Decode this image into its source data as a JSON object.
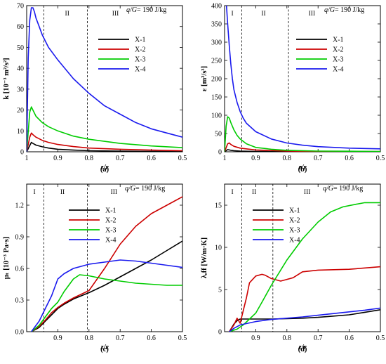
{
  "chart_data": [
    {
      "type": "line",
      "panel_label": "(a)",
      "note": "q/G= 190 J/kg",
      "xlabel": "z/r",
      "ylabel": "k [10⁻³ m²/s²]",
      "xlim": [
        1.0,
        0.5
      ],
      "ylim": [
        0,
        70
      ],
      "xticks": [
        1,
        0.9,
        0.8,
        0.7,
        0.6,
        0.5
      ],
      "yticks": [
        0,
        10,
        20,
        30,
        40,
        50,
        60,
        70
      ],
      "region_labels": [
        "II",
        "III"
      ],
      "region_label_x": [
        0.87,
        0.715
      ],
      "region_boundaries": [
        0.945,
        0.805
      ],
      "legend_position": "right",
      "series": [
        {
          "name": "X-1",
          "color": "#000000",
          "x": [
            1.0,
            0.99,
            0.985,
            0.98,
            0.97,
            0.95,
            0.93,
            0.9,
            0.85,
            0.8,
            0.7,
            0.6,
            0.5
          ],
          "y": [
            0,
            3,
            4.5,
            4,
            3.2,
            2.4,
            1.8,
            1.2,
            0.8,
            0.5,
            0.3,
            0.2,
            0.1
          ]
        },
        {
          "name": "X-2",
          "color": "#cc0000",
          "x": [
            1.0,
            0.99,
            0.985,
            0.98,
            0.97,
            0.95,
            0.93,
            0.9,
            0.85,
            0.8,
            0.7,
            0.6,
            0.5
          ],
          "y": [
            0,
            7,
            9,
            8.2,
            7,
            5.5,
            4.5,
            3.5,
            2.5,
            1.8,
            1.2,
            0.8,
            0.5
          ]
        },
        {
          "name": "X-3",
          "color": "#00cc00",
          "x": [
            1.0,
            0.99,
            0.985,
            0.98,
            0.97,
            0.95,
            0.93,
            0.9,
            0.85,
            0.8,
            0.7,
            0.6,
            0.5
          ],
          "y": [
            0,
            19,
            21.5,
            20,
            17,
            14,
            12,
            10,
            7.5,
            6,
            4,
            2.8,
            2
          ]
        },
        {
          "name": "X-4",
          "color": "#1a1aee",
          "x": [
            1.0,
            0.995,
            0.99,
            0.985,
            0.98,
            0.975,
            0.97,
            0.96,
            0.95,
            0.94,
            0.93,
            0.9,
            0.85,
            0.8,
            0.75,
            0.7,
            0.65,
            0.6,
            0.55,
            0.5
          ],
          "y": [
            0,
            45,
            63,
            69,
            69,
            67,
            64,
            60,
            56,
            53,
            50,
            44,
            35,
            28,
            22,
            18,
            14,
            11,
            9,
            7
          ]
        }
      ]
    },
    {
      "type": "line",
      "panel_label": "(b)",
      "note": "q/G= 190 J/kg",
      "xlabel": "z/r",
      "ylabel": "ε [m²/s³]",
      "xlim": [
        1.0,
        0.5
      ],
      "ylim": [
        0,
        400
      ],
      "xticks": [
        1,
        0.9,
        0.8,
        0.7,
        0.6,
        0.5
      ],
      "yticks": [
        0,
        50,
        100,
        150,
        200,
        250,
        300,
        350,
        400
      ],
      "region_labels": [
        "I",
        "II",
        "III"
      ],
      "region_label_x": [
        0.975,
        0.875,
        0.72
      ],
      "region_boundaries": [
        0.945,
        0.795
      ],
      "legend_position": "right",
      "series": [
        {
          "name": "X-1",
          "color": "#000000",
          "x": [
            1.0,
            0.99,
            0.985,
            0.98,
            0.97,
            0.95,
            0.9,
            0.8,
            0.7,
            0.5
          ],
          "y": [
            0,
            6,
            5,
            4,
            3,
            2,
            1,
            0.5,
            0.2,
            0.1
          ]
        },
        {
          "name": "X-2",
          "color": "#cc0000",
          "x": [
            1.0,
            0.99,
            0.985,
            0.98,
            0.97,
            0.95,
            0.9,
            0.8,
            0.7,
            0.5
          ],
          "y": [
            0,
            22,
            24,
            20,
            15,
            10,
            5,
            2,
            1,
            0.5
          ]
        },
        {
          "name": "X-3",
          "color": "#00cc00",
          "x": [
            1.0,
            0.995,
            0.99,
            0.985,
            0.98,
            0.97,
            0.96,
            0.95,
            0.93,
            0.9,
            0.85,
            0.8,
            0.7,
            0.6,
            0.5
          ],
          "y": [
            0,
            70,
            96,
            92,
            80,
            60,
            45,
            35,
            22,
            12,
            7,
            4,
            2,
            1.5,
            1
          ]
        },
        {
          "name": "X-4",
          "color": "#1a1aee",
          "x": [
            0.994,
            0.99,
            0.985,
            0.98,
            0.975,
            0.97,
            0.96,
            0.95,
            0.94,
            0.93,
            0.9,
            0.85,
            0.8,
            0.75,
            0.7,
            0.6,
            0.5
          ],
          "y": [
            400,
            350,
            290,
            240,
            200,
            170,
            135,
            110,
            92,
            78,
            55,
            35,
            24,
            18,
            14,
            10,
            8
          ]
        }
      ]
    },
    {
      "type": "line",
      "panel_label": "(c)",
      "note": "q/G= 190 J/kg",
      "xlabel": "z/r",
      "ylabel": "μₜ [10⁻³ Pa·s]",
      "xlim": [
        1.0,
        0.5
      ],
      "ylim": [
        0,
        1.4
      ],
      "xticks": [
        0.9,
        0.8,
        0.7,
        0.6,
        0.5
      ],
      "yticks": [
        0.0,
        0.3,
        0.6,
        0.9,
        1.2
      ],
      "ytick_labels": [
        "0.0",
        "0.3",
        "0.6",
        "0.9",
        "1.2"
      ],
      "region_labels": [
        "I",
        "II",
        "III"
      ],
      "region_label_x": [
        0.975,
        0.885,
        0.72
      ],
      "region_boundaries": [
        0.945,
        0.805
      ],
      "legend_position": "upper-left",
      "series": [
        {
          "name": "X-1",
          "color": "#000000",
          "x": [
            0.985,
            0.96,
            0.94,
            0.92,
            0.9,
            0.88,
            0.85,
            0.8,
            0.75,
            0.7,
            0.65,
            0.6,
            0.55,
            0.5
          ],
          "y": [
            0,
            0.04,
            0.1,
            0.16,
            0.22,
            0.26,
            0.31,
            0.37,
            0.44,
            0.52,
            0.6,
            0.68,
            0.77,
            0.86
          ]
        },
        {
          "name": "X-2",
          "color": "#cc0000",
          "x": [
            0.985,
            0.96,
            0.94,
            0.92,
            0.9,
            0.88,
            0.85,
            0.8,
            0.75,
            0.7,
            0.65,
            0.6,
            0.55,
            0.5
          ],
          "y": [
            0,
            0.05,
            0.11,
            0.18,
            0.23,
            0.27,
            0.32,
            0.39,
            0.6,
            0.83,
            1.0,
            1.12,
            1.2,
            1.28
          ]
        },
        {
          "name": "X-3",
          "color": "#00cc00",
          "x": [
            0.985,
            0.96,
            0.94,
            0.92,
            0.9,
            0.88,
            0.85,
            0.83,
            0.8,
            0.75,
            0.7,
            0.65,
            0.6,
            0.55,
            0.5
          ],
          "y": [
            0,
            0.06,
            0.14,
            0.22,
            0.28,
            0.38,
            0.5,
            0.54,
            0.53,
            0.5,
            0.48,
            0.46,
            0.45,
            0.44,
            0.44
          ]
        },
        {
          "name": "X-4",
          "color": "#1a1aee",
          "x": [
            0.985,
            0.96,
            0.94,
            0.92,
            0.9,
            0.88,
            0.85,
            0.8,
            0.75,
            0.7,
            0.65,
            0.6,
            0.55,
            0.5
          ],
          "y": [
            0,
            0.1,
            0.22,
            0.34,
            0.5,
            0.55,
            0.6,
            0.64,
            0.66,
            0.68,
            0.67,
            0.65,
            0.63,
            0.61
          ]
        }
      ]
    },
    {
      "type": "line",
      "panel_label": "(d)",
      "note": "q/G= 190 J/kg",
      "xlabel": "z/r",
      "ylabel": "λₑff [W/m·K]",
      "xlim": [
        1.0,
        0.5
      ],
      "ylim": [
        0,
        17.5
      ],
      "xticks": [
        0.9,
        0.8,
        0.7,
        0.6,
        0.5
      ],
      "yticks": [
        0,
        5,
        10,
        15
      ],
      "region_labels": [
        "I",
        "II",
        "III"
      ],
      "region_label_x": [
        0.975,
        0.905,
        0.735
      ],
      "region_boundaries": [
        0.945,
        0.845
      ],
      "legend_position": "upper-left",
      "series": [
        {
          "name": "X-1",
          "color": "#000000",
          "x": [
            0.985,
            0.97,
            0.96,
            0.95,
            0.93,
            0.9,
            0.85,
            0.8,
            0.75,
            0.7,
            0.65,
            0.6,
            0.55,
            0.5
          ],
          "y": [
            0,
            0.9,
            1.3,
            1.5,
            1.5,
            1.5,
            1.5,
            1.55,
            1.6,
            1.7,
            1.85,
            2.0,
            2.3,
            2.6
          ]
        },
        {
          "name": "X-2",
          "color": "#cc0000",
          "x": [
            0.985,
            0.97,
            0.96,
            0.95,
            0.94,
            0.93,
            0.92,
            0.9,
            0.88,
            0.87,
            0.85,
            0.82,
            0.8,
            0.78,
            0.75,
            0.7,
            0.6,
            0.5
          ],
          "y": [
            0,
            0.8,
            1.6,
            1.0,
            2.5,
            4.0,
            5.8,
            6.6,
            6.8,
            6.7,
            6.3,
            6.0,
            6.2,
            6.4,
            7.1,
            7.3,
            7.4,
            7.7
          ]
        },
        {
          "name": "X-3",
          "color": "#00cc00",
          "x": [
            0.985,
            0.96,
            0.94,
            0.92,
            0.9,
            0.88,
            0.85,
            0.8,
            0.78,
            0.75,
            0.7,
            0.66,
            0.62,
            0.58,
            0.55,
            0.5
          ],
          "y": [
            0,
            0.3,
            0.8,
            1.5,
            2.2,
            3.5,
            5.5,
            8.5,
            9.5,
            11,
            13,
            14.2,
            14.8,
            15.1,
            15.3,
            15.3
          ]
        },
        {
          "name": "X-4",
          "color": "#1a1aee",
          "x": [
            0.985,
            0.97,
            0.95,
            0.9,
            0.85,
            0.8,
            0.75,
            0.7,
            0.65,
            0.6,
            0.55,
            0.5
          ],
          "y": [
            0,
            0.4,
            0.8,
            1.2,
            1.45,
            1.6,
            1.75,
            1.95,
            2.15,
            2.35,
            2.55,
            2.8
          ]
        }
      ]
    }
  ]
}
